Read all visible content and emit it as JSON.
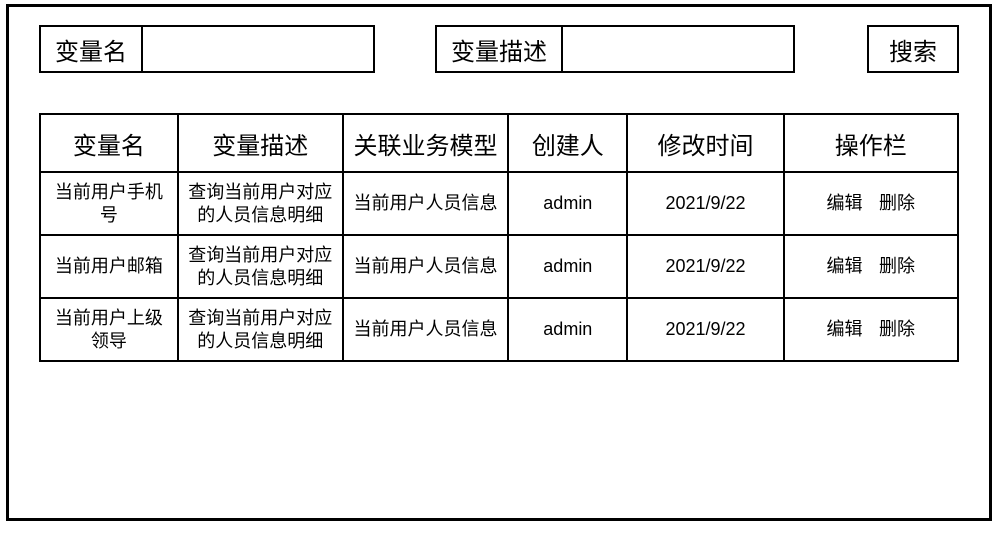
{
  "search": {
    "name_label": "变量名",
    "name_value": "",
    "desc_label": "变量描述",
    "desc_value": "",
    "button": "搜索"
  },
  "table": {
    "columns": [
      "变量名",
      "变量描述",
      "关联业务模型",
      "创建人",
      "修改时间",
      "操作栏"
    ],
    "ops": {
      "edit": "编辑",
      "delete": "删除"
    },
    "rows": [
      {
        "name": "当前用户手机号",
        "desc": "查询当前用户对应的人员信息明细",
        "model": "当前用户人员信息",
        "creator": "admin",
        "time": "2021/9/22"
      },
      {
        "name": "当前用户邮箱",
        "desc": "查询当前用户对应的人员信息明细",
        "model": "当前用户人员信息",
        "creator": "admin",
        "time": "2021/9/22"
      },
      {
        "name": "当前用户上级领导",
        "desc": "查询当前用户对应的人员信息明细",
        "model": "当前用户人员信息",
        "creator": "admin",
        "time": "2021/9/22"
      }
    ]
  }
}
